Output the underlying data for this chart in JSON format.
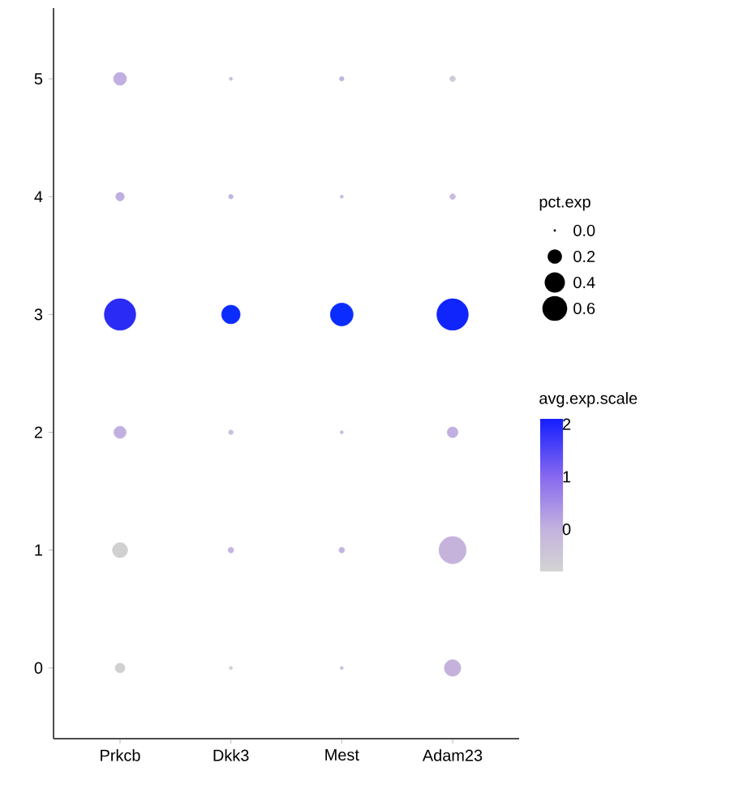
{
  "chart_data": {
    "type": "bubble",
    "categories": [
      "Prkcb",
      "Dkk3",
      "Mest",
      "Adam23"
    ],
    "series": [
      {
        "values": [
          0,
          0,
          0,
          0
        ],
        "sizes": [
          0.09,
          0.01,
          0.01,
          0.26
        ],
        "colors": [
          "#d0d0d0",
          "#d2cbd8",
          "#cbc3dc",
          "#c4b2dc"
        ]
      },
      {
        "values": [
          1,
          1,
          1,
          1
        ],
        "sizes": [
          0.22,
          0.03,
          0.03,
          0.71
        ],
        "colors": [
          "#d0d0d0",
          "#c3b5e0",
          "#c3b5e0",
          "#c5b3dc"
        ]
      },
      {
        "values": [
          2,
          2,
          2,
          2
        ],
        "sizes": [
          0.14,
          0.02,
          0.01,
          0.11
        ],
        "colors": [
          "#c0afe0",
          "#c8bde0",
          "#c8bde0",
          "#c0afe0"
        ]
      },
      {
        "values": [
          3,
          3,
          3,
          3
        ],
        "sizes": [
          0.95,
          0.33,
          0.5,
          0.95
        ],
        "colors": [
          "#2b2bf6",
          "#0a2cff",
          "#0a2cff",
          "#1025fc"
        ]
      },
      {
        "values": [
          4,
          4,
          4,
          4
        ],
        "sizes": [
          0.07,
          0.02,
          0.01,
          0.03
        ],
        "colors": [
          "#bfaee0",
          "#c3b5e0",
          "#c8bde0",
          "#c8bde0"
        ]
      },
      {
        "values": [
          5,
          5,
          5,
          5
        ],
        "sizes": [
          0.16,
          0.01,
          0.02,
          0.03
        ],
        "colors": [
          "#c0afe0",
          "#c8bde0",
          "#c3b5e0",
          "#cfc9dc"
        ]
      }
    ],
    "ylim": [
      -0.6,
      5.6
    ],
    "yticks": [
      0,
      1,
      2,
      3,
      4,
      5
    ],
    "legend_title": "pct.exp",
    "size_legend": [
      {
        "value": 0,
        "label": "0.0"
      },
      {
        "value": 0.2,
        "label": "0.2"
      },
      {
        "value": 0.4,
        "label": "0.4"
      },
      {
        "value": 0.6,
        "label": "0.6"
      }
    ],
    "clabel": "avg.exp.scale",
    "clim": [
      -0.8,
      2.1
    ],
    "cticks": [
      0,
      1,
      2
    ]
  }
}
